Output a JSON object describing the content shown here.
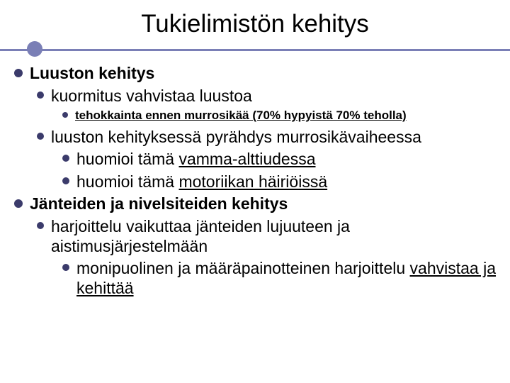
{
  "slide": {
    "title": "Tukielimistön kehitys",
    "accent_color": "#7a7fb6",
    "bullet_color": "#3b3b6b",
    "background_color": "#ffffff",
    "text_color": "#000000",
    "title_fontsize": 35,
    "body_fontsize": 23,
    "small_fontsize": 17,
    "items": [
      {
        "level": 0,
        "bold": true,
        "text": "Luuston kehitys"
      },
      {
        "level": 1,
        "text": "kuormitus vahvistaa luustoa"
      },
      {
        "level": 2,
        "small": true,
        "bold": true,
        "underline": true,
        "text": "tehokkainta ennen murrosikää (70% hypyistä 70% teholla)"
      },
      {
        "level": 1,
        "text": "luuston kehityksessä pyrähdys murrosikävaiheessa"
      },
      {
        "level": 2,
        "text_plain": "huomioi tämä ",
        "text_underline": "vamma-alttiudessa"
      },
      {
        "level": 2,
        "text_plain": "huomioi tämä ",
        "text_underline": "motoriikan häiriöissä"
      },
      {
        "level": 0,
        "bold": true,
        "text": "Jänteiden ja nivelsiteiden kehitys"
      },
      {
        "level": 1,
        "text": "harjoittelu vaikuttaa jänteiden lujuuteen ja aistimusjärjestelmään"
      },
      {
        "level": 2,
        "text_plain": "monipuolinen ja määräpainotteinen harjoittelu ",
        "text_underline": "vahvistaa ja kehittää"
      }
    ]
  }
}
